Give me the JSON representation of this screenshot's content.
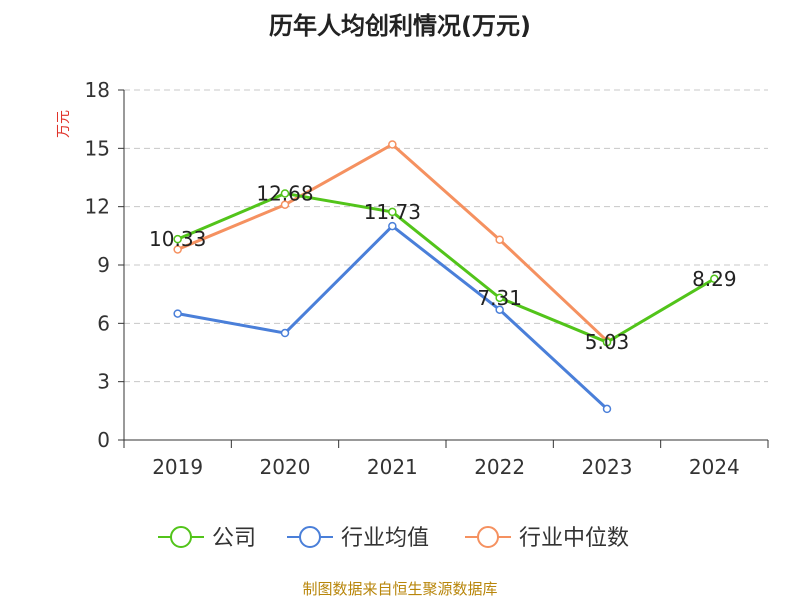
{
  "chart_data": {
    "type": "line",
    "title": "历年人均创利情况(万元)",
    "ylabel": "万元",
    "xlabel": "",
    "categories": [
      "2019",
      "2020",
      "2021",
      "2022",
      "2023",
      "2024"
    ],
    "ylim": [
      0,
      18
    ],
    "yticks": [
      0,
      3,
      6,
      9,
      12,
      15,
      18
    ],
    "grid": true,
    "legend_position": "bottom",
    "series": [
      {
        "name": "公司",
        "color": "#52c41a",
        "values": [
          10.33,
          12.68,
          11.73,
          7.31,
          5.03,
          8.29
        ],
        "labels": [
          "10.33",
          "12.68",
          "11.73",
          "7.31",
          "5.03",
          "8.29"
        ]
      },
      {
        "name": "行业均值",
        "color": "#4a7fd9",
        "values": [
          6.5,
          5.5,
          11.0,
          6.7,
          1.6,
          null
        ]
      },
      {
        "name": "行业中位数",
        "color": "#f59160",
        "values": [
          9.8,
          12.1,
          15.2,
          10.3,
          5.1,
          null
        ]
      }
    ]
  },
  "source": "制图数据来自恒生聚源数据库"
}
